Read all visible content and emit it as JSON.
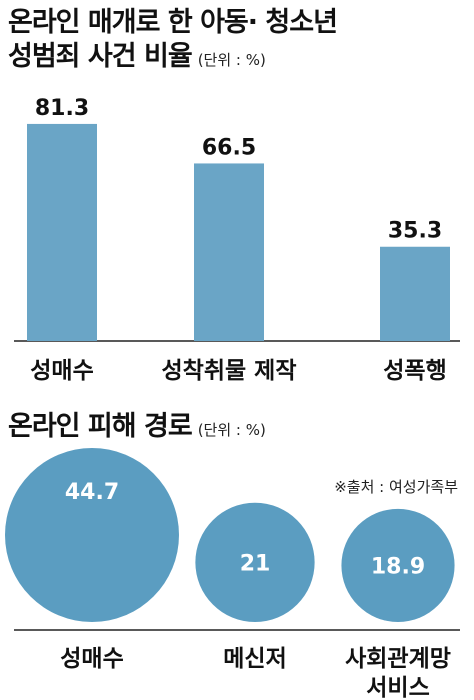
{
  "chart_data": [
    {
      "type": "bar",
      "title_lines": [
        "온라인 매개로 한 아동· 청소년",
        "성범죄 사건 비율"
      ],
      "unit": "(단위 : %)",
      "categories": [
        "성매수",
        "성착취물 제작",
        "성폭행"
      ],
      "values": [
        81.3,
        66.5,
        35.3
      ],
      "value_labels": [
        "81.3",
        "66.5",
        "35.3"
      ],
      "ylim": [
        0,
        100
      ],
      "grid": false,
      "bar_color": "#6aa5c6"
    },
    {
      "type": "bubble",
      "title": "온라인 피해 경로",
      "unit": "(단위 : %)",
      "categories": [
        [
          "성매수"
        ],
        [
          "메신저"
        ],
        [
          "사회관계망",
          "서비스"
        ]
      ],
      "values": [
        44.7,
        21,
        18.9
      ],
      "value_labels": [
        "44.7",
        "21",
        "18.9"
      ],
      "source": "※출처 : 여성가족부",
      "bubble_color": "#5b9dc1"
    }
  ]
}
